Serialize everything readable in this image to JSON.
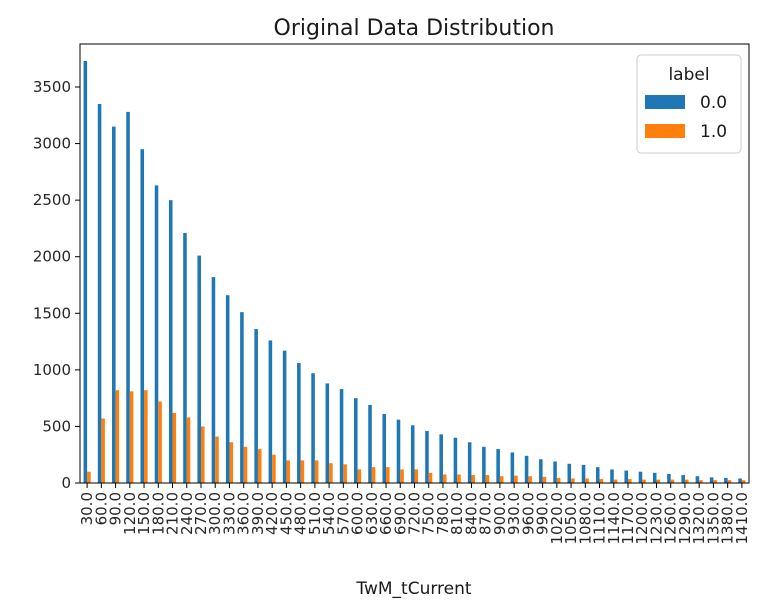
{
  "chart_data": {
    "type": "bar",
    "title": "Original Data Distribution",
    "xlabel": "TwM_tCurrent",
    "ylabel": "",
    "ylim": [
      0,
      3880
    ],
    "yticks": [
      0,
      500,
      1000,
      1500,
      2000,
      2500,
      3000,
      3500
    ],
    "grid": false,
    "legend": {
      "title": "label",
      "placement": "top-right"
    },
    "categories": [
      "30.0",
      "60.0",
      "90.0",
      "120.0",
      "150.0",
      "180.0",
      "210.0",
      "240.0",
      "270.0",
      "300.0",
      "330.0",
      "360.0",
      "390.0",
      "420.0",
      "450.0",
      "480.0",
      "510.0",
      "540.0",
      "570.0",
      "600.0",
      "630.0",
      "660.0",
      "690.0",
      "720.0",
      "750.0",
      "780.0",
      "810.0",
      "840.0",
      "870.0",
      "900.0",
      "930.0",
      "960.0",
      "990.0",
      "1020.0",
      "1050.0",
      "1080.0",
      "1110.0",
      "1140.0",
      "1170.0",
      "1200.0",
      "1230.0",
      "1260.0",
      "1290.0",
      "1320.0",
      "1350.0",
      "1380.0",
      "1410.0"
    ],
    "series": [
      {
        "name": "0.0",
        "color": "#1f77b4",
        "values": [
          3730,
          3350,
          3150,
          3280,
          2950,
          2630,
          2500,
          2210,
          2010,
          1820,
          1660,
          1510,
          1360,
          1260,
          1170,
          1060,
          970,
          880,
          830,
          750,
          690,
          610,
          560,
          510,
          460,
          430,
          400,
          360,
          320,
          300,
          270,
          240,
          210,
          190,
          170,
          160,
          140,
          120,
          110,
          100,
          90,
          80,
          70,
          60,
          50,
          45,
          40
        ]
      },
      {
        "name": "1.0",
        "color": "#ff7f0e",
        "values": [
          100,
          570,
          820,
          810,
          820,
          720,
          620,
          580,
          500,
          410,
          360,
          320,
          300,
          250,
          200,
          200,
          200,
          175,
          165,
          120,
          140,
          140,
          120,
          120,
          90,
          75,
          75,
          70,
          70,
          60,
          65,
          60,
          55,
          45,
          40,
          40,
          35,
          30,
          35,
          30,
          30,
          30,
          30,
          25,
          25,
          25,
          25
        ]
      }
    ]
  }
}
